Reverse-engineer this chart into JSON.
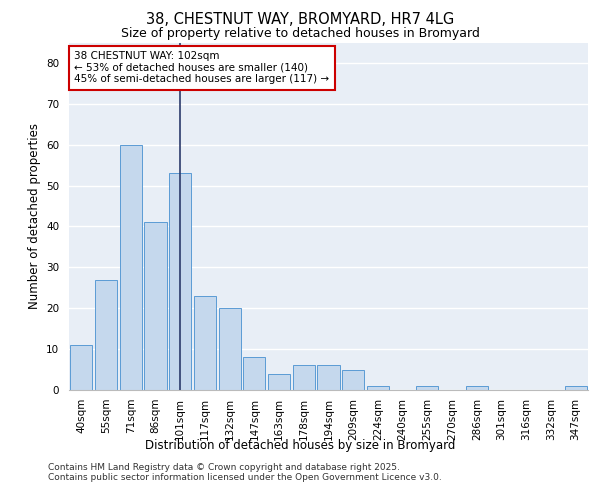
{
  "title_line1": "38, CHESTNUT WAY, BROMYARD, HR7 4LG",
  "title_line2": "Size of property relative to detached houses in Bromyard",
  "xlabel": "Distribution of detached houses by size in Bromyard",
  "ylabel": "Number of detached properties",
  "categories": [
    "40sqm",
    "55sqm",
    "71sqm",
    "86sqm",
    "101sqm",
    "117sqm",
    "132sqm",
    "147sqm",
    "163sqm",
    "178sqm",
    "194sqm",
    "209sqm",
    "224sqm",
    "240sqm",
    "255sqm",
    "270sqm",
    "286sqm",
    "301sqm",
    "316sqm",
    "332sqm",
    "347sqm"
  ],
  "values": [
    11,
    27,
    60,
    41,
    53,
    23,
    20,
    8,
    4,
    6,
    6,
    5,
    1,
    0,
    1,
    0,
    1,
    0,
    0,
    0,
    1
  ],
  "bar_color": "#c5d8ed",
  "bar_edge_color": "#5b9bd5",
  "vline_index": 4,
  "vline_color": "#2b3a6b",
  "annotation_text": "38 CHESTNUT WAY: 102sqm\n← 53% of detached houses are smaller (140)\n45% of semi-detached houses are larger (117) →",
  "annotation_box_color": "#ffffff",
  "annotation_box_edge_color": "#cc0000",
  "background_color": "#e8eef6",
  "grid_color": "#ffffff",
  "fig_bg_color": "#ffffff",
  "ylim": [
    0,
    85
  ],
  "yticks": [
    0,
    10,
    20,
    30,
    40,
    50,
    60,
    70,
    80
  ],
  "footer_line1": "Contains HM Land Registry data © Crown copyright and database right 2025.",
  "footer_line2": "Contains public sector information licensed under the Open Government Licence v3.0.",
  "title_fontsize": 10.5,
  "subtitle_fontsize": 9,
  "axis_label_fontsize": 8.5,
  "tick_fontsize": 7.5,
  "annotation_fontsize": 7.5,
  "footer_fontsize": 6.5
}
